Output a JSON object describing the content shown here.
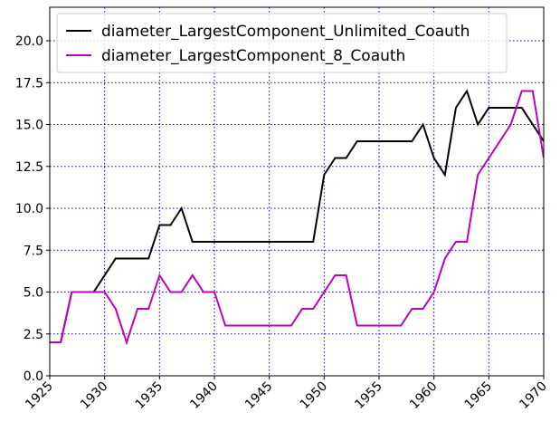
{
  "chart_data": {
    "type": "line",
    "x": [
      1925,
      1926,
      1927,
      1928,
      1929,
      1930,
      1931,
      1932,
      1933,
      1934,
      1935,
      1936,
      1937,
      1938,
      1939,
      1940,
      1941,
      1942,
      1943,
      1944,
      1945,
      1946,
      1947,
      1948,
      1949,
      1950,
      1951,
      1952,
      1953,
      1954,
      1955,
      1956,
      1957,
      1958,
      1959,
      1960,
      1961,
      1962,
      1963,
      1964,
      1965,
      1966,
      1967,
      1968,
      1969,
      1970
    ],
    "series": [
      {
        "name": "diameter_LargestComponent_Unlimited_Coauth",
        "color": "#000000",
        "values": [
          2,
          2,
          5,
          5,
          5,
          6,
          7,
          7,
          7,
          7,
          9,
          9,
          10,
          8,
          8,
          8,
          8,
          8,
          8,
          8,
          8,
          8,
          8,
          8,
          8,
          12,
          13,
          13,
          14,
          14,
          14,
          14,
          14,
          14,
          15,
          13,
          12,
          16,
          17,
          15,
          16,
          16,
          16,
          16,
          15,
          14
        ]
      },
      {
        "name": "diameter_LargestComponent_8_Coauth",
        "color": "#bf00bf",
        "values": [
          2,
          2,
          5,
          5,
          5,
          5,
          4,
          2,
          4,
          4,
          6,
          5,
          5,
          6,
          5,
          5,
          3,
          3,
          3,
          3,
          3,
          3,
          3,
          4,
          4,
          5,
          6,
          6,
          3,
          3,
          3,
          3,
          3,
          4,
          4,
          5,
          7,
          8,
          8,
          12,
          13,
          14,
          15,
          17,
          17,
          13
        ]
      }
    ],
    "xlim": [
      1925,
      1970
    ],
    "xticks": [
      1925,
      1930,
      1935,
      1940,
      1945,
      1950,
      1955,
      1960,
      1965,
      1970
    ],
    "ylim": [
      0,
      22
    ],
    "yticks": [
      {
        "value": 0,
        "label": "0.0"
      },
      2.5,
      {
        "value": 5,
        "label": "5.0"
      },
      7.5,
      {
        "value": 10,
        "label": "10.0"
      },
      12.5,
      {
        "value": 15,
        "label": "15.0"
      },
      17.5,
      {
        "value": 20,
        "label": "20.0"
      }
    ],
    "grid": true,
    "legend": "upper left"
  }
}
